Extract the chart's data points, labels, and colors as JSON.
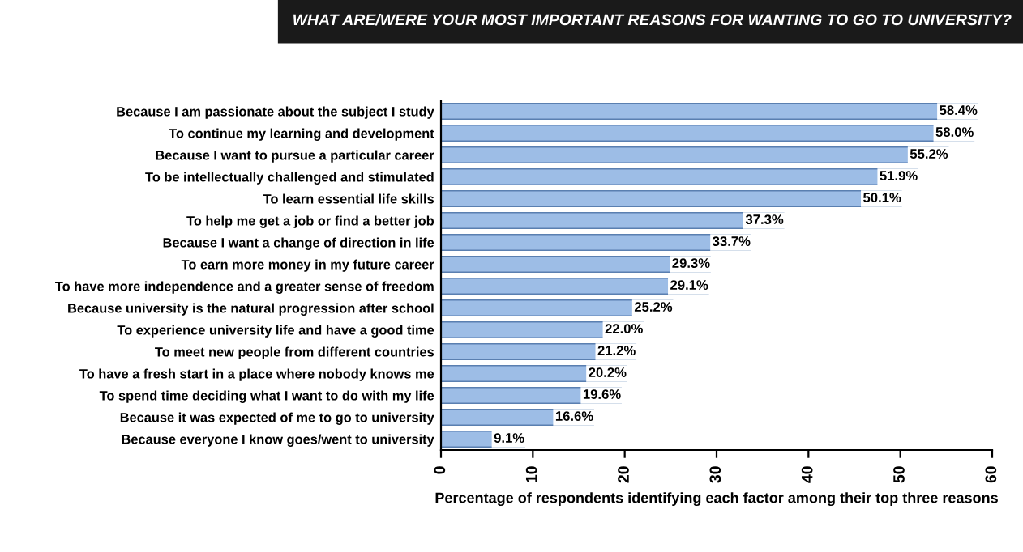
{
  "chart_data": {
    "type": "bar",
    "orientation": "horizontal",
    "title": "WHAT ARE/WERE YOUR MOST IMPORTANT REASONS FOR WANTING TO GO TO UNIVERSITY?",
    "xlabel": "Percentage of respondents identifying each factor among their top three reasons",
    "categories": [
      "Because I am passionate about the subject I study",
      "To continue my learning and development",
      "Because I want to pursue a particular career",
      "To be intellectually challenged and stimulated",
      "To learn essential life skills",
      "To help me get a job or find a better job",
      "Because I want a change of direction in life",
      "To earn more money in my future career",
      "To have more independence and a greater sense of freedom",
      "Because university is the natural progression after school",
      "To experience university life and have a good time",
      "To meet new people from different countries",
      "To have a fresh start in a place where nobody knows me",
      "To spend time deciding what I want to do with my life",
      "Because it was expected of me to go to university",
      "Because everyone I know goes/went to university"
    ],
    "values": [
      58.4,
      58.0,
      55.2,
      51.9,
      50.1,
      37.3,
      33.7,
      29.3,
      29.1,
      25.2,
      22.0,
      21.2,
      20.2,
      19.6,
      16.6,
      9.1
    ],
    "value_labels": [
      "58.4%",
      "58.0%",
      "55.2%",
      "51.9%",
      "50.1%",
      "37.3%",
      "33.7%",
      "29.3%",
      "29.1%",
      "25.2%",
      "22.0%",
      "21.2%",
      "20.2%",
      "19.6%",
      "16.6%",
      "9.1%"
    ],
    "color": "#9dbde6",
    "xlim": [
      0,
      60
    ],
    "xticks": [
      0,
      10,
      20,
      30,
      40,
      50,
      60
    ]
  }
}
